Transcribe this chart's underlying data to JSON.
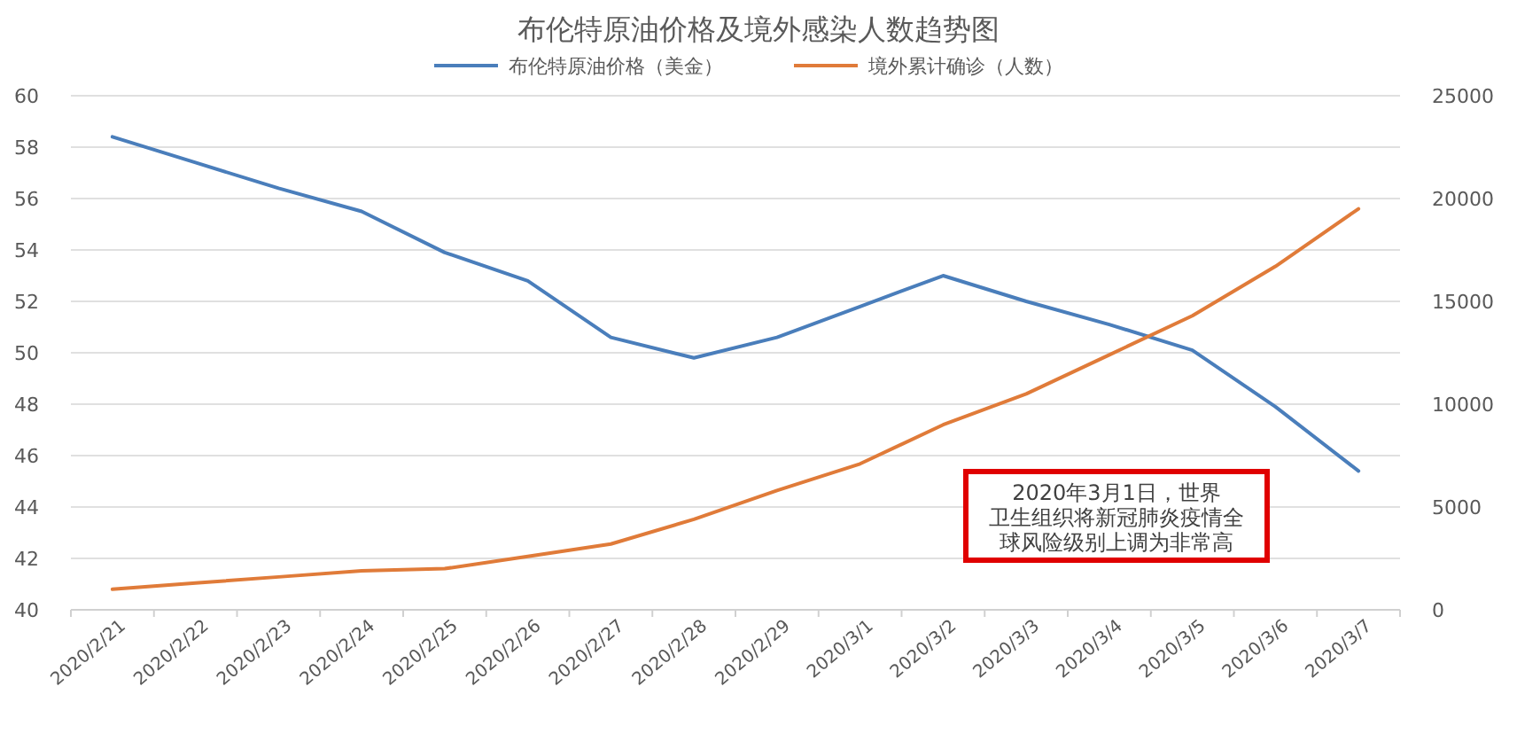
{
  "chart_data": {
    "type": "line",
    "title": "布伦特原油价格及境外感染人数趋势图",
    "categories": [
      "2020/2/21",
      "2020/2/22",
      "2020/2/23",
      "2020/2/24",
      "2020/2/25",
      "2020/2/26",
      "2020/2/27",
      "2020/2/28",
      "2020/2/29",
      "2020/3/1",
      "2020/3/2",
      "2020/3/3",
      "2020/3/4",
      "2020/3/5",
      "2020/3/6",
      "2020/3/7"
    ],
    "series": [
      {
        "name": "布伦特原油价格（美金）",
        "color": "#4a7ebb",
        "values": [
          58.4,
          57.4,
          56.4,
          55.5,
          53.9,
          52.8,
          50.6,
          49.8,
          50.6,
          51.8,
          53.0,
          52.0,
          51.1,
          50.1,
          47.9,
          45.4
        ]
      },
      {
        "name": "境外累计确诊（人数）",
        "color": "#e07b39",
        "axis": "y2",
        "values": [
          1000,
          1300,
          1600,
          1900,
          2000,
          2600,
          3200,
          4400,
          5800,
          7100,
          9000,
          10500,
          12400,
          14300,
          16700,
          19500
        ]
      }
    ],
    "ylim": [
      40,
      60
    ],
    "yticks": [
      40,
      42,
      44,
      46,
      48,
      50,
      52,
      54,
      56,
      58,
      60
    ],
    "y2lim": [
      0,
      25000
    ],
    "y2ticks": [
      0,
      5000,
      10000,
      15000,
      20000,
      25000
    ],
    "grid": "y",
    "legend": "top",
    "annotations": [
      "2020年3月1日，世界卫生组织将新冠肺炎疫情全球风险级别上调为非常高"
    ]
  }
}
